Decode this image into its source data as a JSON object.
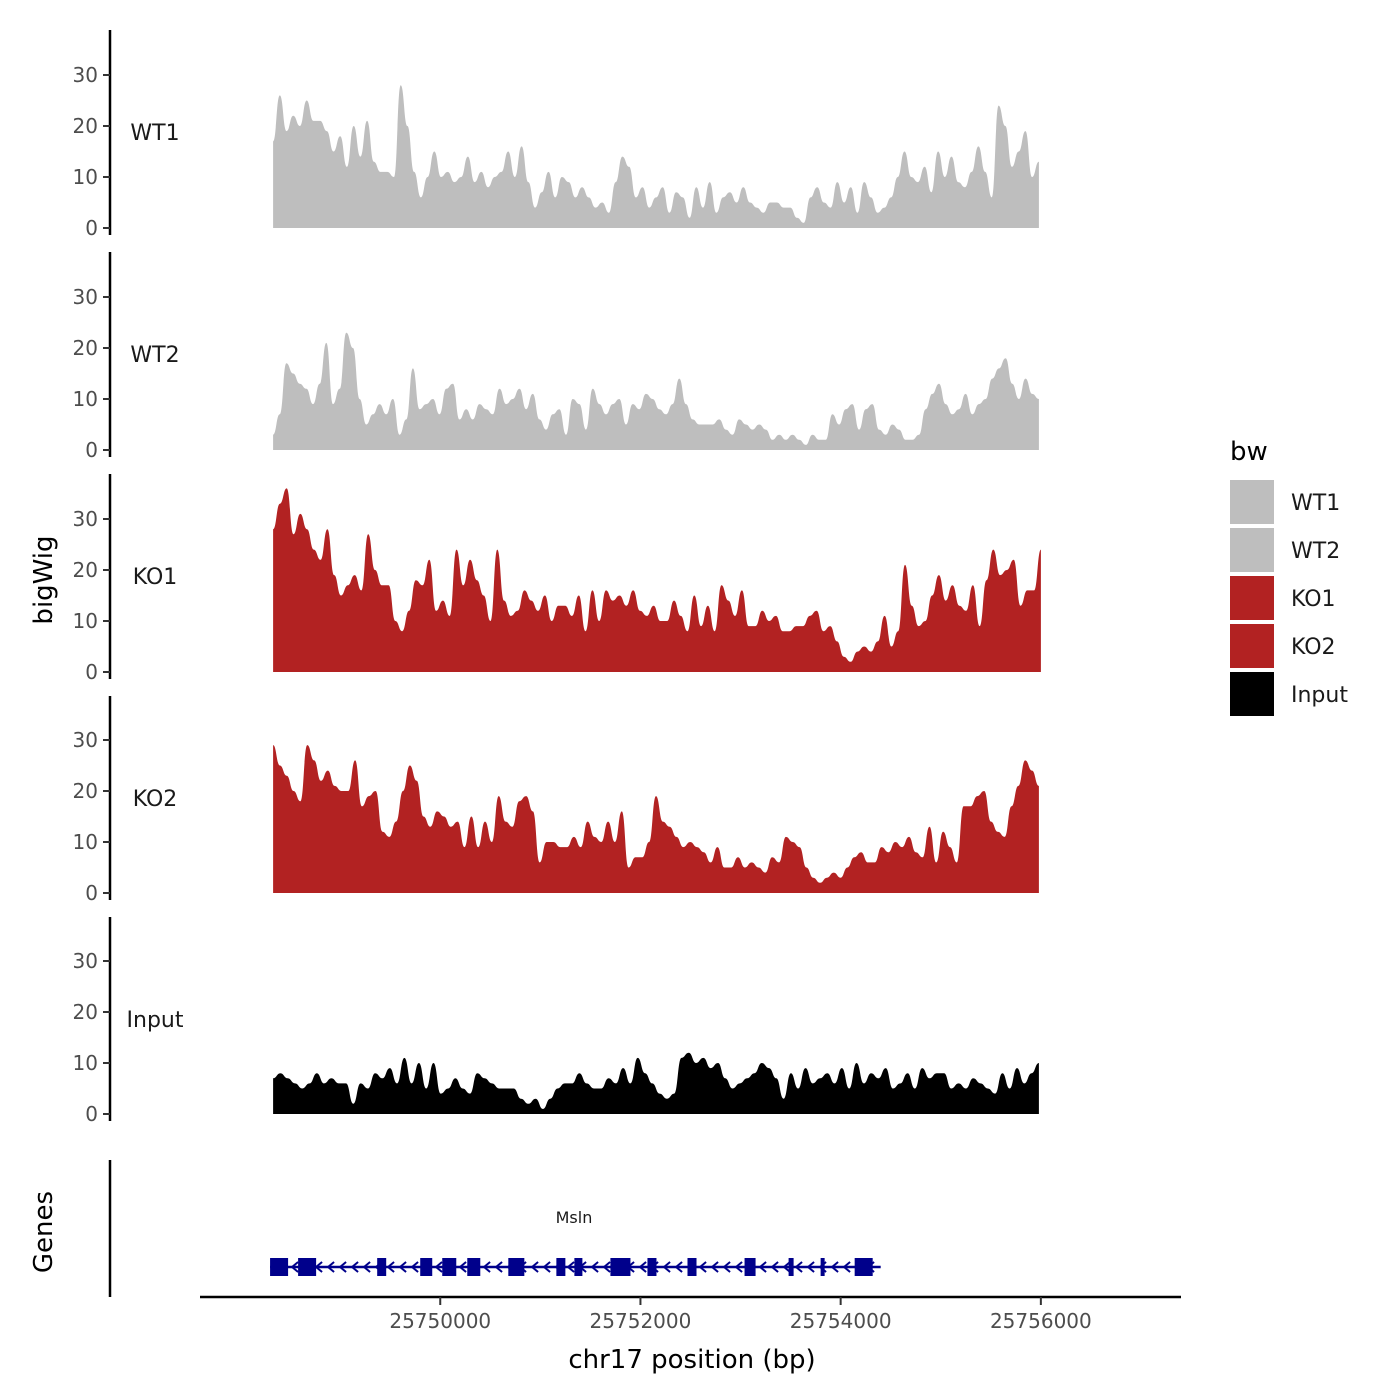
{
  "chart_data": {
    "type": "area",
    "title": "",
    "ylabel": "bigWig",
    "xlabel": "chr17 position (bp)",
    "genes_label": "Genes",
    "ylim": [
      0,
      38
    ],
    "xlim": [
      25747600,
      25757400
    ],
    "y_ticks": [
      0,
      10,
      20,
      30
    ],
    "x_ticks": [
      25750000,
      25752000,
      25754000,
      25756000
    ],
    "tracks": [
      {
        "name": "WT1",
        "color": "#bebebe",
        "x_start": 25748330,
        "x_end": 25755980,
        "values": [
          17,
          26,
          19,
          22,
          20,
          25,
          21,
          21,
          19,
          15,
          18,
          12,
          20,
          14,
          21,
          13,
          11,
          11,
          10,
          28,
          20,
          11,
          6,
          10,
          15,
          10,
          11,
          9,
          10,
          14,
          9,
          11,
          8,
          10,
          11,
          15,
          10,
          16,
          9,
          4,
          7,
          11,
          6,
          10,
          9,
          6,
          8,
          6,
          4,
          5,
          3,
          9,
          14,
          12,
          6,
          8,
          4,
          6,
          8,
          3,
          7,
          6,
          2,
          8,
          4,
          9,
          3,
          6,
          7,
          5,
          8,
          5,
          4,
          3,
          5,
          5,
          4,
          4,
          2,
          1,
          6,
          8,
          5,
          4,
          9,
          5,
          8,
          3,
          9,
          6,
          3,
          4,
          6,
          10,
          15,
          10,
          9,
          12,
          7,
          15,
          10,
          14,
          9,
          8,
          11,
          16,
          11,
          6,
          24,
          20,
          12,
          15,
          19,
          10,
          13
        ]
      },
      {
        "name": "WT2",
        "color": "#bebebe",
        "x_start": 25748330,
        "x_end": 25755980,
        "values": [
          3,
          7,
          17,
          15,
          13,
          12,
          9,
          13,
          21,
          9,
          12,
          23,
          20,
          10,
          5,
          7,
          9,
          7,
          10,
          3,
          6,
          16,
          8,
          9,
          10,
          7,
          12,
          13,
          6,
          8,
          6,
          9,
          8,
          7,
          12,
          9,
          10,
          12,
          8,
          11,
          6,
          4,
          7,
          8,
          3,
          10,
          9,
          4,
          12,
          9,
          7,
          9,
          10,
          5,
          9,
          8,
          11,
          10,
          8,
          7,
          9,
          14,
          9,
          6,
          5,
          5,
          5,
          6,
          4,
          3,
          6,
          5,
          4,
          5,
          4,
          2,
          3,
          2,
          3,
          2,
          1,
          3,
          2,
          2,
          7,
          5,
          8,
          9,
          4,
          8,
          9,
          4,
          3,
          5,
          4,
          2,
          2,
          3,
          8,
          11,
          13,
          9,
          7,
          8,
          11,
          7,
          9,
          10,
          14,
          16,
          18,
          13,
          10,
          14,
          11,
          10
        ]
      },
      {
        "name": "KO1",
        "color": "#b22222",
        "x_start": 25748330,
        "x_end": 25756000,
        "values": [
          28,
          33,
          36,
          27,
          31,
          28,
          24,
          22,
          28,
          19,
          15,
          17,
          19,
          16,
          27,
          20,
          17,
          17,
          10,
          8,
          12,
          18,
          17,
          22,
          12,
          14,
          11,
          24,
          17,
          22,
          18,
          15,
          10,
          24,
          14,
          11,
          12,
          16,
          14,
          12,
          15,
          10,
          13,
          13,
          11,
          15,
          8,
          16,
          10,
          16,
          14,
          15,
          13,
          16,
          12,
          11,
          13,
          10,
          10,
          14,
          11,
          8,
          15,
          9,
          13,
          8,
          17,
          14,
          11,
          16,
          9,
          9,
          12,
          10,
          11,
          8,
          8,
          9,
          9,
          11,
          12,
          8,
          9,
          6,
          3,
          2,
          4,
          5,
          4,
          6,
          11,
          5,
          8,
          21,
          13,
          9,
          10,
          15,
          19,
          14,
          17,
          13,
          12,
          17,
          9,
          18,
          24,
          19,
          20,
          22,
          13,
          16,
          16,
          24
        ]
      },
      {
        "name": "KO2",
        "color": "#b22222",
        "x_start": 25748330,
        "x_end": 25755980,
        "values": [
          29,
          25,
          23,
          20,
          18,
          29,
          26,
          22,
          24,
          21,
          20,
          20,
          26,
          17,
          19,
          20,
          12,
          11,
          14,
          20,
          25,
          22,
          15,
          13,
          16,
          15,
          13,
          14,
          9,
          15,
          9,
          14,
          10,
          19,
          14,
          13,
          18,
          19,
          16,
          6,
          10,
          10,
          9,
          9,
          11,
          9,
          14,
          11,
          10,
          14,
          10,
          16,
          5,
          7,
          7,
          10,
          19,
          14,
          13,
          11,
          9,
          10,
          9,
          8,
          6,
          9,
          5,
          5,
          7,
          5,
          6,
          5,
          4,
          7,
          6,
          11,
          10,
          9,
          5,
          3,
          2,
          3,
          4,
          3,
          5,
          7,
          8,
          6,
          6,
          9,
          8,
          10,
          9,
          11,
          8,
          7,
          13,
          6,
          12,
          9,
          6,
          17,
          17,
          19,
          20,
          14,
          12,
          11,
          17,
          21,
          26,
          24,
          21
        ]
      },
      {
        "name": "Input",
        "color": "#000000",
        "x_start": 25748330,
        "x_end": 25755980,
        "values": [
          7,
          8,
          7,
          6,
          5,
          6,
          8,
          6,
          7,
          6,
          6,
          2,
          6,
          5,
          8,
          7,
          9,
          6,
          11,
          6,
          10,
          5,
          10,
          4,
          5,
          7,
          5,
          4,
          8,
          7,
          6,
          5,
          5,
          5,
          3,
          2,
          3,
          1,
          3,
          5,
          6,
          6,
          8,
          6,
          5,
          5,
          7,
          6,
          9,
          6,
          11,
          8,
          6,
          4,
          3,
          4,
          11,
          12,
          10,
          11,
          9,
          10,
          7,
          5,
          6,
          7,
          8,
          10,
          9,
          7,
          3,
          8,
          5,
          9,
          6,
          7,
          8,
          6,
          9,
          5,
          10,
          6,
          8,
          7,
          9,
          5,
          6,
          8,
          5,
          9,
          7,
          8,
          8,
          5,
          6,
          5,
          7,
          6,
          5,
          4,
          8,
          5,
          9,
          6,
          8,
          10
        ]
      }
    ],
    "gene": {
      "name": "Msln",
      "strand": "-",
      "color": "#00008b",
      "start": 25748300,
      "end": 25754400,
      "exons": [
        [
          25748300,
          25748480
        ],
        [
          25748580,
          25748760
        ],
        [
          25749370,
          25749460
        ],
        [
          25749800,
          25749920
        ],
        [
          25750020,
          25750160
        ],
        [
          25750270,
          25750400
        ],
        [
          25750680,
          25750840
        ],
        [
          25751160,
          25751250
        ],
        [
          25751340,
          25751420
        ],
        [
          25751700,
          25751900
        ],
        [
          25752070,
          25752160
        ],
        [
          25752470,
          25752560
        ],
        [
          25753040,
          25753150
        ],
        [
          25753480,
          25753530
        ],
        [
          25753800,
          25753840
        ],
        [
          25754140,
          25754320
        ]
      ]
    },
    "legend": {
      "title": "bw",
      "position": "right",
      "entries": [
        {
          "label": "WT1",
          "color": "#bebebe"
        },
        {
          "label": "WT2",
          "color": "#bebebe"
        },
        {
          "label": "KO1",
          "color": "#b22222"
        },
        {
          "label": "KO2",
          "color": "#b22222"
        },
        {
          "label": "Input",
          "color": "#000000"
        }
      ]
    }
  }
}
